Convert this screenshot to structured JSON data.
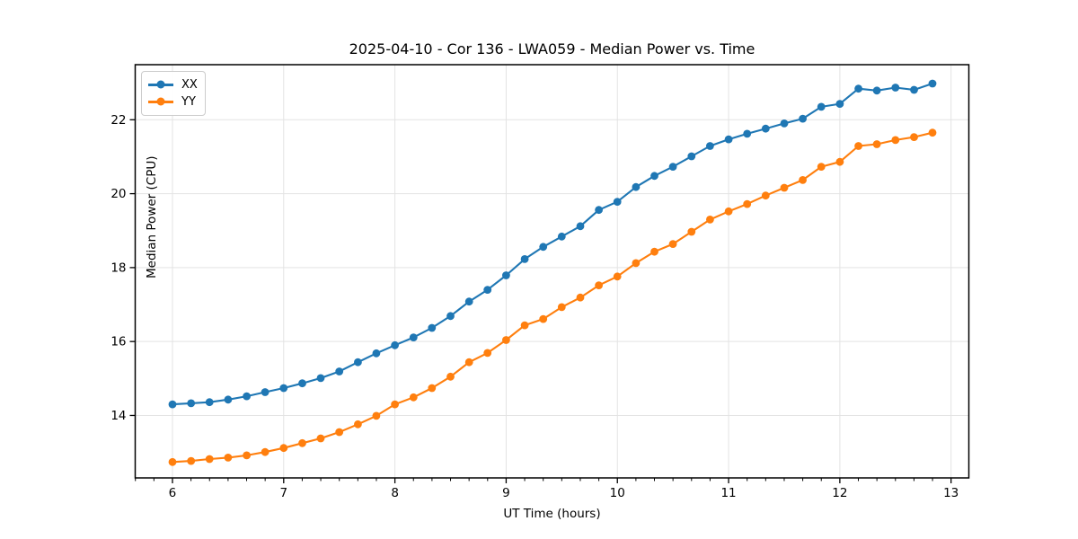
{
  "chart_data": {
    "type": "line",
    "title": "2025-04-10 - Cor 136 - LWA059 - Median Power vs. Time",
    "xlabel": "UT Time (hours)",
    "ylabel": "Median Power (CPU)",
    "grid": true,
    "legend_position": "upper left",
    "xlim": [
      5.665,
      13.16
    ],
    "ylim": [
      12.31,
      23.49
    ],
    "xticks": [
      6,
      7,
      8,
      9,
      10,
      11,
      12,
      13
    ],
    "yticks": [
      14,
      16,
      18,
      20,
      22
    ],
    "x_minor_tick_step": 0.1667,
    "x": [
      6.0,
      6.167,
      6.333,
      6.5,
      6.667,
      6.833,
      7.0,
      7.167,
      7.333,
      7.5,
      7.667,
      7.833,
      8.0,
      8.167,
      8.333,
      8.5,
      8.667,
      8.833,
      9.0,
      9.167,
      9.333,
      9.5,
      9.667,
      9.833,
      10.0,
      10.167,
      10.333,
      10.5,
      10.667,
      10.833,
      11.0,
      11.167,
      11.333,
      11.5,
      11.667,
      11.833,
      12.0,
      12.167,
      12.333,
      12.5,
      12.667,
      12.833
    ],
    "series": [
      {
        "name": "XX",
        "color": "#1f77b4",
        "values": [
          14.3,
          14.33,
          14.36,
          14.43,
          14.52,
          14.63,
          14.74,
          14.87,
          15.01,
          15.19,
          15.44,
          15.68,
          15.9,
          16.11,
          16.37,
          16.69,
          17.08,
          17.4,
          17.79,
          18.23,
          18.56,
          18.84,
          19.12,
          19.56,
          19.78,
          20.18,
          20.48,
          20.73,
          21.01,
          21.29,
          21.47,
          21.62,
          21.76,
          21.9,
          22.03,
          22.35,
          22.43,
          22.84,
          22.79,
          22.87,
          22.81,
          22.98
        ]
      },
      {
        "name": "YY",
        "color": "#ff7f0e",
        "values": [
          12.74,
          12.77,
          12.82,
          12.86,
          12.92,
          13.01,
          13.12,
          13.25,
          13.38,
          13.55,
          13.76,
          13.99,
          14.3,
          14.49,
          14.74,
          15.05,
          15.44,
          15.69,
          16.04,
          16.44,
          16.61,
          16.93,
          17.19,
          17.52,
          17.76,
          18.12,
          18.43,
          18.64,
          18.97,
          19.3,
          19.52,
          19.72,
          19.95,
          20.16,
          20.37,
          20.73,
          20.86,
          21.29,
          21.34,
          21.45,
          21.53,
          21.65
        ]
      }
    ],
    "style": {
      "grid_color": "#e3e3e3",
      "spine_color": "#000000",
      "tick_color": "#000000",
      "background": "#ffffff"
    }
  }
}
